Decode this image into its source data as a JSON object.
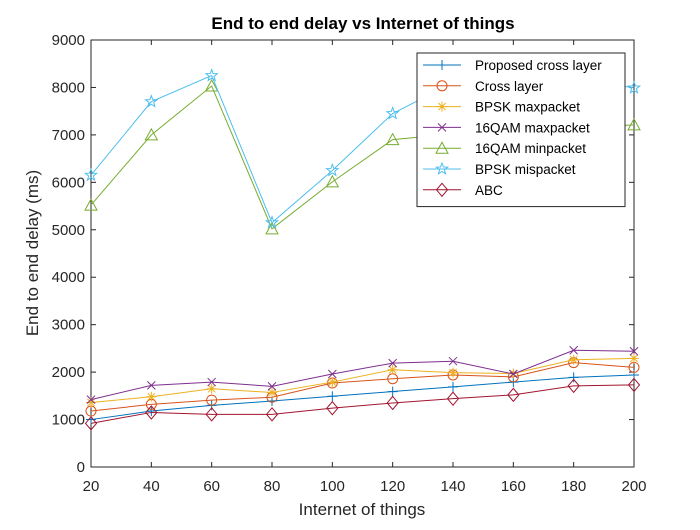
{
  "chart_data": {
    "type": "line",
    "title": "End to end delay vs Internet of things",
    "xlabel": "Internet of things",
    "ylabel": "End to end delay (ms)",
    "xlim": [
      20,
      200
    ],
    "ylim": [
      0,
      9000
    ],
    "xticks": [
      20,
      40,
      60,
      80,
      100,
      120,
      140,
      160,
      180,
      200
    ],
    "yticks": [
      0,
      1000,
      2000,
      3000,
      4000,
      5000,
      6000,
      7000,
      8000,
      9000
    ],
    "grid": false,
    "legend_position": "top-right",
    "x": [
      20,
      40,
      60,
      80,
      100,
      120,
      140,
      160,
      180,
      200
    ],
    "series": [
      {
        "name": "Proposed cross layer",
        "color": "#0072BD",
        "marker": "plus",
        "values": [
          1000,
          1180,
          1300,
          1390,
          1490,
          1590,
          1690,
          1790,
          1890,
          1940
        ]
      },
      {
        "name": "Cross layer",
        "color": "#D95319",
        "marker": "circle",
        "values": [
          1180,
          1320,
          1410,
          1470,
          1770,
          1860,
          1940,
          1900,
          2200,
          2100
        ]
      },
      {
        "name": "BPSK maxpacket",
        "color": "#EDB120",
        "marker": "asterisk",
        "values": [
          1360,
          1480,
          1650,
          1570,
          1790,
          2050,
          1990,
          1970,
          2260,
          2290
        ]
      },
      {
        "name": "16QAM maxpacket",
        "color": "#7E2F8E",
        "marker": "cross",
        "values": [
          1420,
          1720,
          1790,
          1700,
          1960,
          2190,
          2230,
          1960,
          2460,
          2440
        ]
      },
      {
        "name": "16QAM minpacket",
        "color": "#77AC30",
        "marker": "triangle",
        "values": [
          5520,
          7000,
          8030,
          5020,
          6010,
          6900,
          7020,
          7100,
          7150,
          7210
        ]
      },
      {
        "name": "BPSK mispacket",
        "color": "#4DBEEE",
        "marker": "pentagram",
        "values": [
          6150,
          7700,
          8250,
          5150,
          6250,
          7450,
          8100,
          8150,
          8200,
          7990
        ]
      },
      {
        "name": "ABC",
        "color": "#A2142F",
        "marker": "diamond",
        "values": [
          920,
          1150,
          1110,
          1110,
          1240,
          1350,
          1440,
          1520,
          1710,
          1730
        ]
      }
    ]
  }
}
